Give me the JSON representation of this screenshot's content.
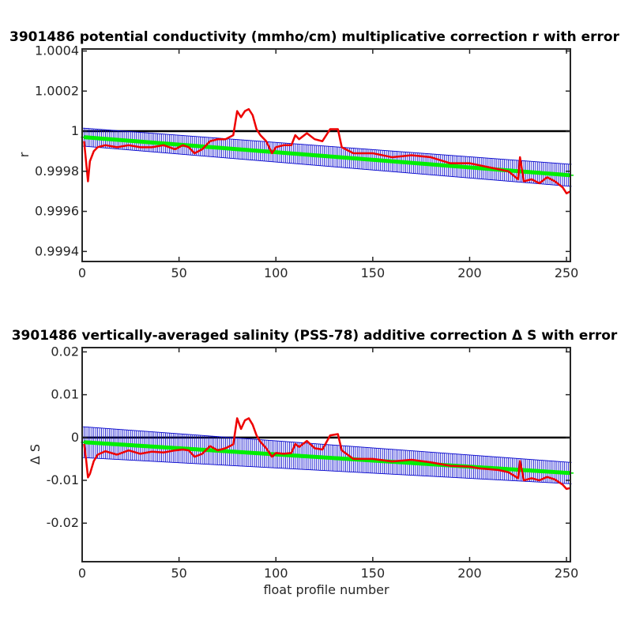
{
  "chart_data": [
    {
      "type": "line",
      "title": "3901486 potential conductivity (mmho/cm) multiplicative correction r with error",
      "xlabel": "",
      "ylabel": "r",
      "xlim": [
        0,
        252
      ],
      "ylim": [
        0.99935,
        1.00041
      ],
      "xticks": [
        0,
        50,
        100,
        150,
        200,
        250
      ],
      "yticks": [
        0.9994,
        0.9996,
        0.9998,
        1,
        1.0002,
        1.0004
      ],
      "ytick_labels": [
        "0.9994",
        "0.9996",
        "0.9998",
        "1",
        "1.0002",
        "1.0004"
      ],
      "grid": false,
      "reference_line": {
        "y": 1,
        "color": "#000000"
      },
      "series": [
        {
          "role": "fitted-correction-with-error-bars",
          "color_bars": "#0000cc",
          "color_line": "#00ee00",
          "x_start": 1,
          "x_end": 252,
          "y_start": 0.99997,
          "y_end": 0.99978,
          "err_start": 4.5e-05,
          "err_end": 5.5e-05
        },
        {
          "role": "profile-correction",
          "color": "#ee0000",
          "x": [
            1,
            2,
            3,
            4,
            6,
            8,
            12,
            18,
            24,
            30,
            36,
            42,
            48,
            52,
            55,
            58,
            62,
            66,
            70,
            74,
            78,
            80,
            82,
            84,
            86,
            88,
            90,
            92,
            95,
            98,
            100,
            104,
            108,
            110,
            112,
            116,
            120,
            124,
            128,
            132,
            134,
            140,
            150,
            160,
            170,
            180,
            190,
            200,
            205,
            210,
            215,
            220,
            225,
            226,
            228,
            232,
            236,
            240,
            244,
            248,
            250,
            252
          ],
          "y": [
            0.99995,
            0.99985,
            0.99975,
            0.99985,
            0.9999,
            0.99992,
            0.99993,
            0.99992,
            0.99993,
            0.99992,
            0.99992,
            0.99993,
            0.99991,
            0.99993,
            0.99992,
            0.99989,
            0.99991,
            0.99995,
            0.99996,
            0.99996,
            0.99998,
            1.0001,
            1.00007,
            1.0001,
            1.00011,
            1.00008,
            1.00001,
            0.99998,
            0.99995,
            0.99989,
            0.99992,
            0.99993,
            0.99993,
            0.99998,
            0.99996,
            0.99999,
            0.99996,
            0.99995,
            1.00001,
            1.00001,
            0.99992,
            0.99989,
            0.99989,
            0.99987,
            0.99988,
            0.99987,
            0.99984,
            0.99984,
            0.99983,
            0.99982,
            0.99981,
            0.9998,
            0.99976,
            0.99987,
            0.99975,
            0.99976,
            0.99974,
            0.99977,
            0.99975,
            0.99972,
            0.99969,
            0.9997
          ]
        }
      ]
    },
    {
      "type": "line",
      "title": "3901486 vertically-averaged salinity (PSS-78) additive correction Δ S with error",
      "xlabel": "float profile number",
      "ylabel": "Δ S",
      "xlim": [
        0,
        252
      ],
      "ylim": [
        -0.029,
        0.021
      ],
      "xticks": [
        0,
        50,
        100,
        150,
        200,
        250
      ],
      "yticks": [
        -0.02,
        -0.01,
        0,
        0.01,
        0.02
      ],
      "ytick_labels": [
        "-0.02",
        "-0.01",
        "0",
        "0.01",
        "0.02"
      ],
      "grid": false,
      "reference_line": {
        "y": 0,
        "color": "#000000"
      },
      "series": [
        {
          "role": "fitted-correction-with-error-bars",
          "color_bars": "#0000cc",
          "color_line": "#00ee00",
          "x_start": 1,
          "x_end": 252,
          "y_start": -0.0011,
          "y_end": -0.0083,
          "err_start": 0.0036,
          "err_end": 0.0025
        },
        {
          "role": "profile-correction",
          "color": "#ee0000",
          "x": [
            1,
            2,
            3,
            4,
            6,
            8,
            12,
            18,
            24,
            30,
            36,
            42,
            48,
            52,
            55,
            58,
            62,
            66,
            70,
            74,
            78,
            80,
            82,
            84,
            86,
            88,
            90,
            92,
            95,
            98,
            100,
            104,
            108,
            110,
            112,
            116,
            120,
            124,
            128,
            132,
            134,
            140,
            150,
            160,
            170,
            180,
            190,
            200,
            205,
            210,
            215,
            220,
            225,
            226,
            228,
            232,
            236,
            240,
            244,
            248,
            250,
            252
          ],
          "y": [
            -0.0015,
            -0.005,
            -0.0093,
            -0.0085,
            -0.0055,
            -0.004,
            -0.0032,
            -0.004,
            -0.003,
            -0.0038,
            -0.0033,
            -0.0035,
            -0.003,
            -0.0028,
            -0.003,
            -0.0045,
            -0.0038,
            -0.002,
            -0.003,
            -0.0025,
            -0.0016,
            0.0045,
            0.002,
            0.004,
            0.0045,
            0.003,
            0.0005,
            -0.001,
            -0.0025,
            -0.0045,
            -0.0036,
            -0.0038,
            -0.0036,
            -0.0015,
            -0.0022,
            -0.0008,
            -0.0025,
            -0.0028,
            0.0005,
            0.0008,
            -0.003,
            -0.005,
            -0.005,
            -0.0056,
            -0.0052,
            -0.0058,
            -0.0066,
            -0.0068,
            -0.0072,
            -0.0074,
            -0.0076,
            -0.0081,
            -0.0095,
            -0.0055,
            -0.01,
            -0.0095,
            -0.01,
            -0.0092,
            -0.0098,
            -0.011,
            -0.012,
            -0.0118
          ]
        }
      ]
    }
  ]
}
